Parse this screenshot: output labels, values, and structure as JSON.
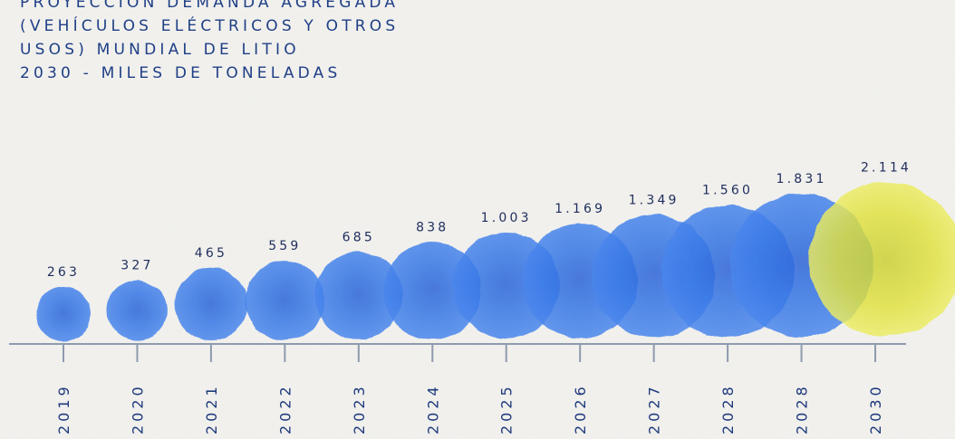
{
  "chart_data": {
    "type": "bubble",
    "title_lines": [
      "PROYECCIÓN DEMANDA AGREGADA",
      "(VEHÍCULOS ELÉCTRICOS Y OTROS",
      "USOS) MUNDIAL DE LITIO",
      "2030 - MILES DE TONELADAS"
    ],
    "categories": [
      "2019",
      "2020",
      "2021",
      "2022",
      "2023",
      "2024",
      "2025",
      "2026",
      "2027",
      "2028",
      "2028",
      "2030"
    ],
    "value_labels": [
      "263",
      "327",
      "465",
      "559",
      "685",
      "838",
      "1.003",
      "1.169",
      "1.349",
      "1.560",
      "1.831",
      "2.114"
    ],
    "values": [
      263,
      327,
      465,
      559,
      685,
      838,
      1003,
      1169,
      1349,
      1560,
      1831,
      2114
    ],
    "colors": {
      "bubble": "#2f6fe0",
      "highlight": "#dfe02e",
      "axis": "#8e9aae"
    }
  }
}
